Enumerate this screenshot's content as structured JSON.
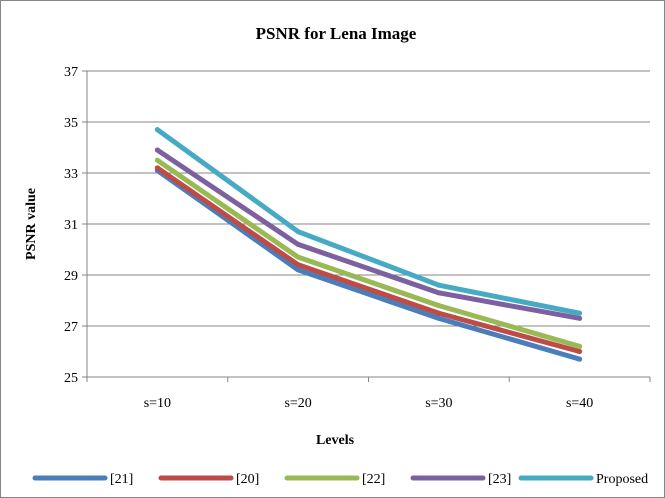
{
  "chart_data": {
    "type": "line",
    "title": "PSNR for Lena Image",
    "xlabel": "Levels",
    "ylabel": "PSNR value",
    "categories": [
      "s=10",
      "s=20",
      "s=30",
      "s=40"
    ],
    "ylim": [
      25,
      37
    ],
    "yticks": [
      25,
      27,
      29,
      31,
      33,
      35,
      37
    ],
    "grid": "horizontal",
    "legend_position": "bottom",
    "series": [
      {
        "name": "[21]",
        "color": "#4a7ebb",
        "values": [
          33.1,
          29.2,
          27.3,
          25.7
        ]
      },
      {
        "name": "[20]",
        "color": "#be4b48",
        "values": [
          33.2,
          29.4,
          27.5,
          26.0
        ]
      },
      {
        "name": "[22]",
        "color": "#98b954",
        "values": [
          33.5,
          29.7,
          27.8,
          26.2
        ]
      },
      {
        "name": "[23]",
        "color": "#7d60a0",
        "values": [
          33.9,
          30.2,
          28.3,
          27.3
        ]
      },
      {
        "name": "Proposed",
        "color": "#46aac5",
        "values": [
          34.7,
          30.7,
          28.6,
          27.5
        ]
      }
    ]
  }
}
